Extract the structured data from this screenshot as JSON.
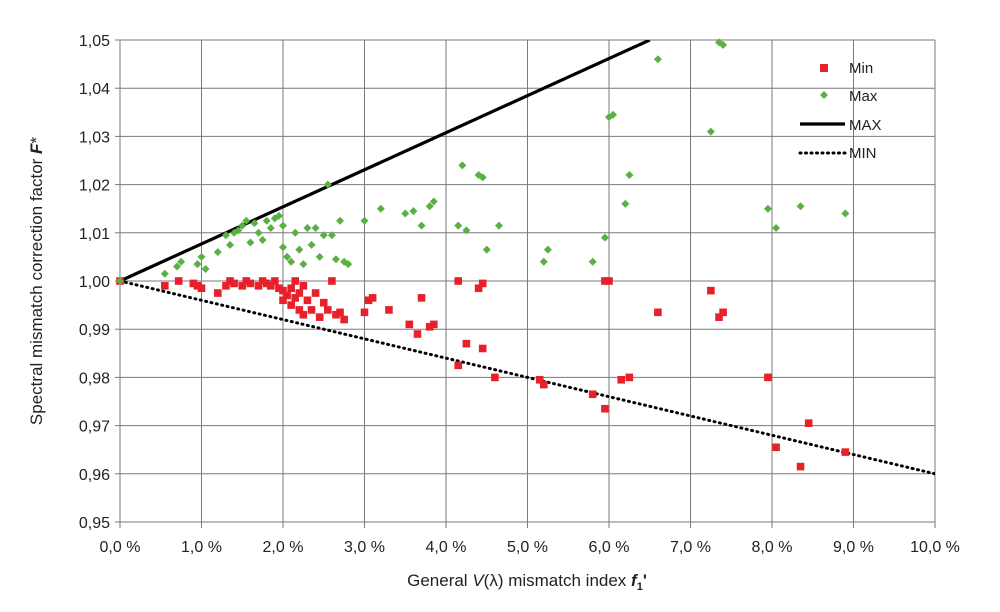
{
  "chart_data": {
    "type": "scatter",
    "xlabel": {
      "pre": "General ",
      "v": "V",
      "paren": "(λ)",
      "post": " mismatch index ",
      "sym": "f",
      "sub": "1",
      "prime": "'"
    },
    "ylabel": {
      "pre": "Spectral mismatch correction factor ",
      "sym": "F",
      "post": "*"
    },
    "xlim": [
      0,
      10
    ],
    "ylim": [
      0.95,
      1.05
    ],
    "grid": true,
    "legend_position": "top-right",
    "x_ticks": [
      "0,0 %",
      "1,0 %",
      "2,0 %",
      "3,0 %",
      "4,0 %",
      "5,0 %",
      "6,0 %",
      "7,0 %",
      "8,0 %",
      "9,0 %",
      "10,0 %"
    ],
    "y_ticks": [
      "0,95",
      "0,96",
      "0,97",
      "0,98",
      "0,99",
      "1,00",
      "1,01",
      "1,02",
      "1,03",
      "1,04",
      "1,05"
    ],
    "x_tick_values": [
      0,
      1,
      2,
      3,
      4,
      5,
      6,
      7,
      8,
      9,
      10
    ],
    "y_tick_values": [
      0.95,
      0.96,
      0.97,
      0.98,
      0.99,
      1.0,
      1.01,
      1.02,
      1.03,
      1.04,
      1.05
    ],
    "colors": {
      "min": "#e8202a",
      "max": "#5bb043",
      "line": "#000000",
      "grid": "#7a7a7a"
    },
    "series": [
      {
        "name": "Min",
        "kind": "scatter",
        "marker": "square",
        "points": [
          [
            0,
            1.0
          ],
          [
            0.55,
            0.999
          ],
          [
            0.72,
            1.0
          ],
          [
            0.9,
            0.9995
          ],
          [
            0.95,
            0.999
          ],
          [
            1.0,
            0.9985
          ],
          [
            1.2,
            0.9975
          ],
          [
            1.3,
            0.999
          ],
          [
            1.35,
            1.0
          ],
          [
            1.4,
            0.9995
          ],
          [
            1.5,
            0.999
          ],
          [
            1.55,
            1.0
          ],
          [
            1.6,
            0.9995
          ],
          [
            1.7,
            0.999
          ],
          [
            1.75,
            1.0
          ],
          [
            1.8,
            0.9995
          ],
          [
            1.85,
            0.999
          ],
          [
            1.9,
            1.0
          ],
          [
            1.95,
            0.9985
          ],
          [
            2.0,
            0.998
          ],
          [
            2.0,
            0.996
          ],
          [
            2.05,
            0.997
          ],
          [
            2.1,
            0.9985
          ],
          [
            2.1,
            0.995
          ],
          [
            2.15,
            0.9965
          ],
          [
            2.15,
            1.0
          ],
          [
            2.2,
            0.994
          ],
          [
            2.2,
            0.9975
          ],
          [
            2.25,
            0.993
          ],
          [
            2.25,
            0.999
          ],
          [
            2.3,
            0.996
          ],
          [
            2.35,
            0.994
          ],
          [
            2.4,
            0.9975
          ],
          [
            2.45,
            0.9925
          ],
          [
            2.5,
            0.9955
          ],
          [
            2.55,
            0.994
          ],
          [
            2.6,
            1.0
          ],
          [
            2.65,
            0.993
          ],
          [
            2.7,
            0.9935
          ],
          [
            2.75,
            0.992
          ],
          [
            3.0,
            0.9935
          ],
          [
            3.05,
            0.996
          ],
          [
            3.1,
            0.9965
          ],
          [
            3.3,
            0.994
          ],
          [
            3.55,
            0.991
          ],
          [
            3.65,
            0.989
          ],
          [
            3.7,
            0.9965
          ],
          [
            3.8,
            0.9905
          ],
          [
            3.85,
            0.991
          ],
          [
            4.15,
            0.9825
          ],
          [
            4.15,
            1.0
          ],
          [
            4.25,
            0.987
          ],
          [
            4.4,
            0.9985
          ],
          [
            4.45,
            0.9995
          ],
          [
            4.45,
            0.986
          ],
          [
            4.6,
            0.98
          ],
          [
            5.15,
            0.9795
          ],
          [
            5.2,
            0.9785
          ],
          [
            5.8,
            0.9765
          ],
          [
            5.95,
            0.9735
          ],
          [
            5.95,
            1.0
          ],
          [
            6.0,
            1.0
          ],
          [
            6.15,
            0.9795
          ],
          [
            6.25,
            0.98
          ],
          [
            6.6,
            0.9935
          ],
          [
            7.25,
            0.998
          ],
          [
            7.35,
            0.9925
          ],
          [
            7.4,
            0.9935
          ],
          [
            7.95,
            0.98
          ],
          [
            8.05,
            0.9655
          ],
          [
            8.35,
            0.9615
          ],
          [
            8.45,
            0.9705
          ],
          [
            8.9,
            0.9645
          ]
        ]
      },
      {
        "name": "Max",
        "kind": "scatter",
        "marker": "diamond",
        "points": [
          [
            0,
            1.0
          ],
          [
            0.55,
            1.0015
          ],
          [
            0.7,
            1.003
          ],
          [
            0.75,
            1.004
          ],
          [
            0.95,
            1.0035
          ],
          [
            1.0,
            1.005
          ],
          [
            1.05,
            1.0025
          ],
          [
            1.2,
            1.006
          ],
          [
            1.3,
            1.0095
          ],
          [
            1.35,
            1.0075
          ],
          [
            1.4,
            1.01
          ],
          [
            1.45,
            1.0105
          ],
          [
            1.5,
            1.0115
          ],
          [
            1.55,
            1.0125
          ],
          [
            1.6,
            1.008
          ],
          [
            1.65,
            1.012
          ],
          [
            1.7,
            1.01
          ],
          [
            1.75,
            1.0085
          ],
          [
            1.8,
            1.0125
          ],
          [
            1.85,
            1.011
          ],
          [
            1.9,
            1.013
          ],
          [
            1.95,
            1.0135
          ],
          [
            2.0,
            1.0115
          ],
          [
            2.0,
            1.007
          ],
          [
            2.05,
            1.005
          ],
          [
            2.1,
            1.004
          ],
          [
            2.15,
            1.01
          ],
          [
            2.2,
            1.0065
          ],
          [
            2.25,
            1.0035
          ],
          [
            2.3,
            1.011
          ],
          [
            2.35,
            1.0075
          ],
          [
            2.4,
            1.011
          ],
          [
            2.45,
            1.005
          ],
          [
            2.5,
            1.0095
          ],
          [
            2.55,
            1.02
          ],
          [
            2.6,
            1.0095
          ],
          [
            2.65,
            1.0045
          ],
          [
            2.7,
            1.0125
          ],
          [
            2.75,
            1.004
          ],
          [
            2.8,
            1.0035
          ],
          [
            3.0,
            1.0125
          ],
          [
            3.2,
            1.015
          ],
          [
            3.5,
            1.014
          ],
          [
            3.6,
            1.0145
          ],
          [
            3.7,
            1.0115
          ],
          [
            3.8,
            1.0155
          ],
          [
            3.85,
            1.0165
          ],
          [
            4.15,
            1.0115
          ],
          [
            4.2,
            1.024
          ],
          [
            4.25,
            1.0105
          ],
          [
            4.4,
            1.022
          ],
          [
            4.45,
            1.0215
          ],
          [
            4.5,
            1.0065
          ],
          [
            4.65,
            1.0115
          ],
          [
            5.2,
            1.004
          ],
          [
            5.25,
            1.0065
          ],
          [
            5.8,
            1.004
          ],
          [
            5.95,
            1.009
          ],
          [
            6.0,
            1.034
          ],
          [
            6.05,
            1.0345
          ],
          [
            6.2,
            1.016
          ],
          [
            6.25,
            1.022
          ],
          [
            6.6,
            1.046
          ],
          [
            7.25,
            1.031
          ],
          [
            7.35,
            1.0495
          ],
          [
            7.4,
            1.049
          ],
          [
            7.95,
            1.015
          ],
          [
            8.05,
            1.011
          ],
          [
            8.35,
            1.0155
          ],
          [
            8.9,
            1.014
          ]
        ]
      },
      {
        "name": "MAX",
        "kind": "line",
        "style": "solid",
        "points": [
          [
            0,
            1.0
          ],
          [
            6.5,
            1.05
          ]
        ]
      },
      {
        "name": "MIN",
        "kind": "line",
        "style": "dotted",
        "points": [
          [
            0,
            1.0
          ],
          [
            10,
            0.96
          ]
        ]
      }
    ]
  }
}
